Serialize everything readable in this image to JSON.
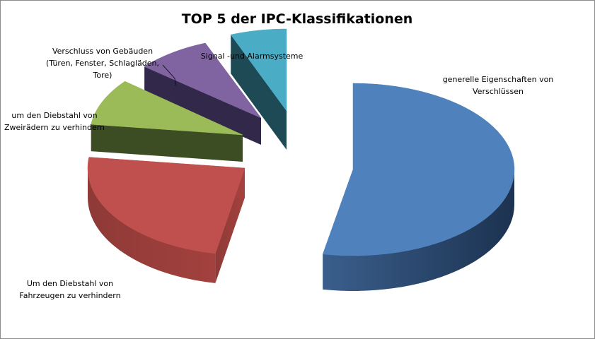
{
  "chart_data": {
    "type": "pie",
    "title": "TOP 5 der IPC-Klassifikationen",
    "style": "3d-exploded",
    "legend": "none",
    "slices": [
      {
        "label": "generelle Eigenschaften von Verschlüssen",
        "label_lines": [
          "generelle Eigenschaften von",
          "Verschlüssen"
        ],
        "value": 53,
        "color": "#4F81BD"
      },
      {
        "label": "Um den Diebstahl von Fahrzeugen zu verhindern",
        "label_lines": [
          "Um den Diebstahl von",
          "Fahrzeugen zu verhindern"
        ],
        "value": 24,
        "color": "#C0504D"
      },
      {
        "label": "um den Diebstahl von Zweirädern zu verhindern",
        "label_lines": [
          "um den Diebstahl von",
          "Zweirädern zu verhindern"
        ],
        "value": 9,
        "color": "#9BBB59"
      },
      {
        "label": "Verschluss von Gebäuden (Türen, Fenster, Schlagläden, Tore)",
        "label_lines": [
          "Verschluss von Gebäuden",
          "(Türen, Fenster, Schlagläden,",
          "Tore)"
        ],
        "value": 8,
        "color": "#8064A2"
      },
      {
        "label": "Signal -und Alarmsysteme",
        "label_lines": [
          "Signal -und Alarmsysteme"
        ],
        "value": 6,
        "color": "#4BACC6"
      }
    ]
  }
}
